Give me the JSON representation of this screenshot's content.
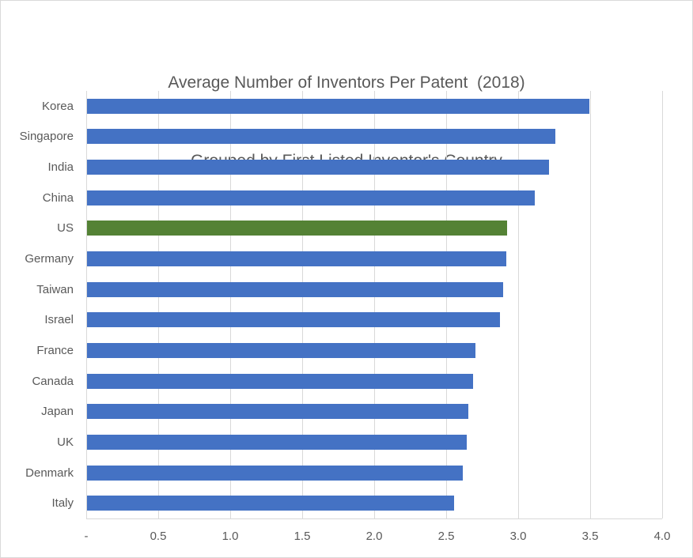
{
  "title": {
    "line1": "Average Number of Inventors Per Patent  (2018)",
    "line2": "Grouped by First Listed Inventor's Country"
  },
  "chart_data": {
    "type": "bar",
    "orientation": "horizontal",
    "title": "Average Number of Inventors Per Patent (2018) Grouped by First Listed Inventor's Country",
    "categories": [
      "Korea",
      "Singapore",
      "India",
      "China",
      "US",
      "Germany",
      "Taiwan",
      "Israel",
      "France",
      "Canada",
      "Japan",
      "UK",
      "Denmark",
      "Italy"
    ],
    "values": [
      3.49,
      3.25,
      3.21,
      3.11,
      2.92,
      2.91,
      2.89,
      2.87,
      2.7,
      2.68,
      2.65,
      2.64,
      2.61,
      2.55
    ],
    "highlight_category": "US",
    "xlabel": "",
    "ylabel": "",
    "xlim": [
      0,
      4.0
    ],
    "x_ticks": [
      {
        "value": 0,
        "label": "-"
      },
      {
        "value": 0.5,
        "label": "0.5"
      },
      {
        "value": 1,
        "label": "1.0"
      },
      {
        "value": 1.5,
        "label": "1.5"
      },
      {
        "value": 2,
        "label": "2.0"
      },
      {
        "value": 2.5,
        "label": "2.5"
      },
      {
        "value": 3,
        "label": "3.0"
      },
      {
        "value": 3.5,
        "label": "3.5"
      },
      {
        "value": 4,
        "label": "4.0"
      }
    ],
    "grid": true,
    "legend": false,
    "colors": {
      "bar": "#4472C4",
      "highlight": "#548235",
      "gridline": "#D9D9D9",
      "axis_line": "#D9D9D9",
      "text": "#595959",
      "background": "#FFFFFF",
      "border": "#D9D9D9"
    }
  }
}
